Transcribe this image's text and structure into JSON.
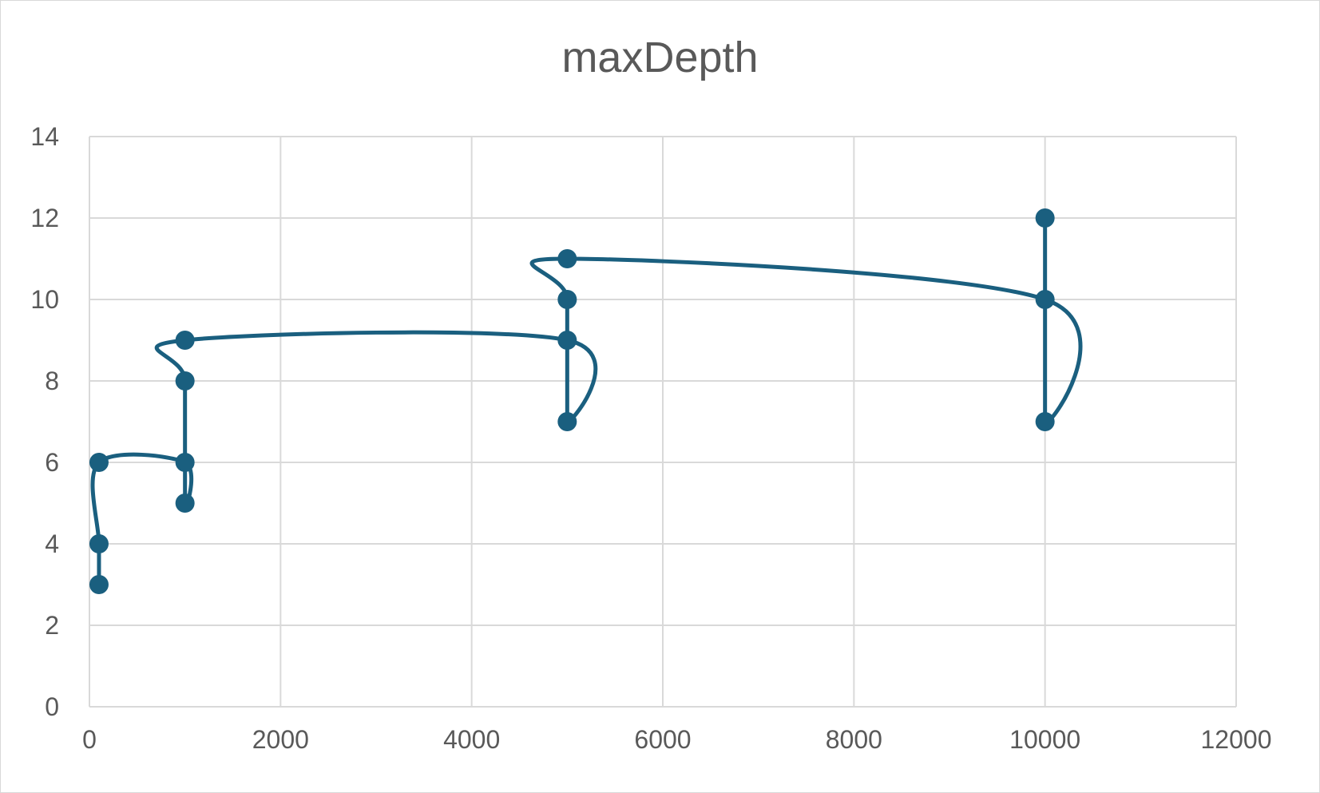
{
  "chart_data": {
    "type": "scatter",
    "title": "maxDepth",
    "xlabel": "",
    "ylabel": "",
    "xlim": [
      0,
      12000
    ],
    "ylim": [
      0,
      14
    ],
    "xticks": [
      0,
      2000,
      4000,
      6000,
      8000,
      10000,
      12000
    ],
    "yticks": [
      0,
      2,
      4,
      6,
      8,
      10,
      12,
      14
    ],
    "xtick_labels": [
      "0",
      "2000",
      "4000",
      "6000",
      "8000",
      "10000",
      "12000"
    ],
    "ytick_labels": [
      "0",
      "2",
      "4",
      "6",
      "8",
      "10",
      "12",
      "14"
    ],
    "grid": true,
    "legend": false,
    "line_style": "smoothed with markers",
    "series_color": "#1a5f7f",
    "series": [
      {
        "x": [
          100,
          100,
          100,
          1000,
          1000,
          1000,
          1000,
          5000,
          5000,
          5000,
          5000,
          10000,
          10000,
          10000
        ],
        "y": [
          3,
          4,
          6,
          6,
          5,
          8,
          9,
          9,
          7,
          10,
          11,
          10,
          7,
          12
        ]
      }
    ]
  }
}
